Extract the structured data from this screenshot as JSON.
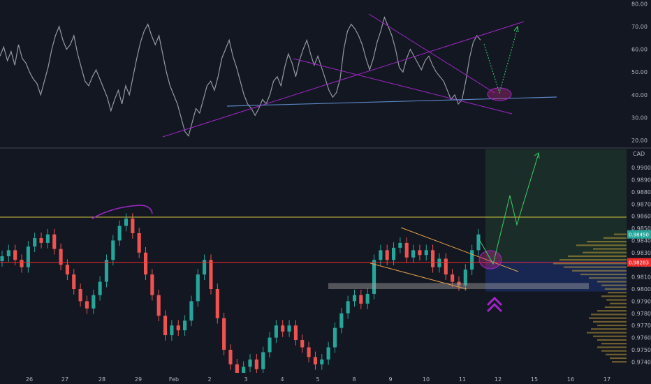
{
  "chart_data": [
    {
      "type": "line",
      "panel": "oscillator",
      "yticks": [
        20,
        30,
        40,
        50,
        60,
        70,
        80
      ],
      "ytick_labels": [
        "20.00",
        "30.00",
        "40.00",
        "50.00",
        "60.00",
        "70.00",
        "80.00"
      ],
      "ylim": [
        17,
        81
      ],
      "grid": false,
      "line_color": "#9598a1",
      "series": [
        {
          "values": [
            57,
            61,
            55,
            59,
            53,
            62,
            56,
            54,
            50,
            47,
            45,
            40,
            46,
            52,
            60,
            66,
            70,
            64,
            60,
            62,
            66,
            58,
            52,
            46,
            44,
            48,
            51,
            47,
            43,
            39,
            33,
            38,
            42,
            36,
            44,
            40,
            48,
            56,
            63,
            68,
            71,
            66,
            62,
            66,
            58,
            50,
            44,
            40,
            36,
            30,
            24,
            22,
            28,
            34,
            32,
            38,
            44,
            46,
            42,
            48,
            56,
            60,
            64,
            57,
            52,
            46,
            40,
            36,
            34,
            31,
            34,
            38,
            36,
            40,
            46,
            48,
            44,
            52,
            58,
            54,
            48,
            55,
            60,
            64,
            58,
            53,
            57,
            52,
            47,
            42,
            39,
            41,
            47,
            60,
            68,
            71,
            69,
            66,
            62,
            56,
            51,
            56,
            63,
            68,
            74,
            70,
            66,
            60,
            52,
            50,
            56,
            60,
            57,
            54,
            51,
            55,
            57,
            53,
            50,
            48,
            46,
            42,
            38,
            40,
            36,
            38,
            46,
            56,
            63,
            66,
            64
          ]
        }
      ]
    },
    {
      "type": "candlestick",
      "panel": "price",
      "currency": "CAD",
      "yticks": [
        0.974,
        0.975,
        0.976,
        0.977,
        0.978,
        0.979,
        0.98,
        0.981,
        0.982,
        0.983,
        0.984,
        0.985,
        0.986,
        0.987,
        0.988,
        0.989,
        0.99
      ],
      "ytick_labels": [
        "0.97400",
        "0.97500",
        "0.97600",
        "0.97700",
        "0.97800",
        "0.97900",
        "0.98000",
        "0.98100",
        "0.98200",
        "0.98300",
        "0.98400",
        "0.98500",
        "0.98600",
        "0.98700",
        "0.98800",
        "0.98900",
        "0.99000"
      ],
      "ylim": [
        0.9731,
        0.9915
      ],
      "grid": false,
      "categories": [
        "26",
        "27",
        "28",
        "29",
        "Feb",
        "2",
        "3",
        "4",
        "5",
        "8",
        "9",
        "10",
        "11",
        "12",
        "15",
        "16",
        "17"
      ],
      "current_price_label": "0.98283",
      "last_close": 0.9845,
      "up_color": "#26a69a",
      "down_color": "#ef5350",
      "closes": [
        0.9827,
        0.9832,
        0.9824,
        0.9818,
        0.9835,
        0.9842,
        0.9838,
        0.9845,
        0.9833,
        0.982,
        0.9812,
        0.98,
        0.979,
        0.9784,
        0.9795,
        0.9806,
        0.9824,
        0.984,
        0.9852,
        0.9858,
        0.9846,
        0.983,
        0.9812,
        0.9795,
        0.9778,
        0.9762,
        0.977,
        0.9766,
        0.9774,
        0.979,
        0.9812,
        0.9824,
        0.98,
        0.9776,
        0.975,
        0.9738,
        0.9728,
        0.9736,
        0.9742,
        0.9734,
        0.9748,
        0.976,
        0.977,
        0.9765,
        0.977,
        0.9758,
        0.9752,
        0.9744,
        0.9738,
        0.9742,
        0.9752,
        0.9768,
        0.978,
        0.979,
        0.9795,
        0.9788,
        0.9796,
        0.9824,
        0.9832,
        0.9824,
        0.9834,
        0.9838,
        0.9826,
        0.9832,
        0.9828,
        0.9832,
        0.9818,
        0.9825,
        0.9812,
        0.9806,
        0.9803,
        0.9816,
        0.9832,
        0.9845
      ]
    }
  ],
  "chart_labels": {
    "date_labels": [
      "26",
      "27",
      "28",
      "29",
      "Feb",
      "2",
      "3",
      "4",
      "5",
      "8",
      "9",
      "10",
      "11",
      "12",
      "15",
      "16",
      "17"
    ],
    "currency": "CAD",
    "price_tag": "0.98283",
    "last_tag": "0.98450"
  },
  "colors": {
    "background": "#131722",
    "resistance": "#d4c53c",
    "support_red": "#ef2a2a",
    "annotation_purple": "#a126c8",
    "trend_orange": "#e8a24a",
    "support_blue": "#5b86c4",
    "target_zone": "rgba(76,175,80,0.15)",
    "stop_zone": "rgba(41,98,255,0.22)",
    "projection": "#3fce6a",
    "profile_bars": "#e2b93b"
  }
}
